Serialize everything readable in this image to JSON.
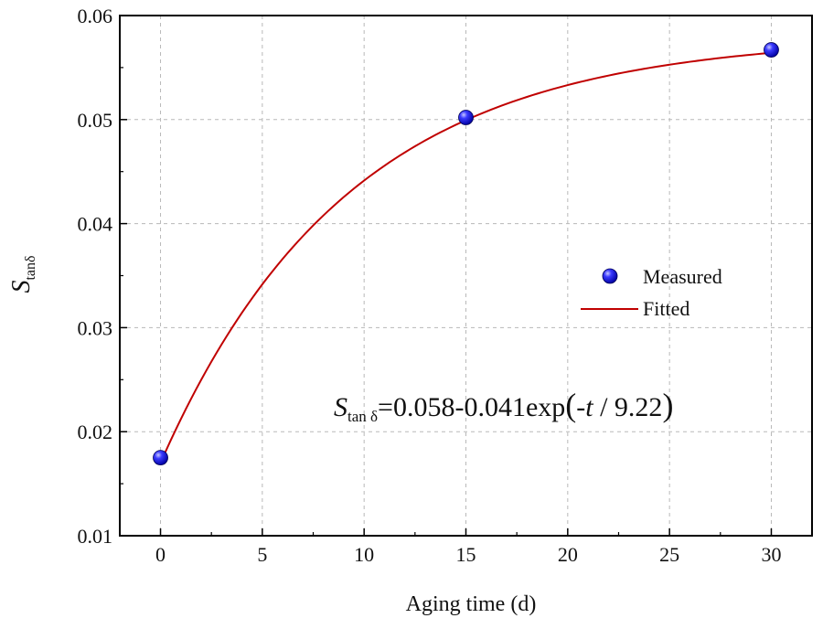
{
  "chart_data": {
    "type": "scatter",
    "title": "",
    "xlabel": "Aging time (d)",
    "ylabel": {
      "main": "S",
      "sub": "tanδ"
    },
    "xlim": [
      -2,
      32
    ],
    "ylim": [
      0.01,
      0.06
    ],
    "xticks": [
      0,
      5,
      10,
      15,
      20,
      25,
      30
    ],
    "xtick_labels": [
      "0",
      "5",
      "10",
      "15",
      "20",
      "25",
      "30"
    ],
    "yticks": [
      0.01,
      0.02,
      0.03,
      0.04,
      0.05,
      0.06
    ],
    "ytick_labels": [
      "0.01",
      "0.02",
      "0.03",
      "0.04",
      "0.05",
      "0.06"
    ],
    "grid": true,
    "legend_position": "right",
    "series": [
      {
        "name": "Measured",
        "kind": "scatter",
        "color": "#1a1aff",
        "x": [
          0,
          15,
          30
        ],
        "y": [
          0.0175,
          0.0502,
          0.0567
        ]
      },
      {
        "name": "Fitted",
        "kind": "line",
        "color": "#c00000",
        "model": {
          "a": 0.058,
          "b": 0.041,
          "tau": 9.22
        },
        "x_range": [
          0,
          30
        ]
      }
    ],
    "annotation": {
      "lhs_main": "S",
      "lhs_sub": "tan δ",
      "rhs_prefix": "=0.058-0.041exp",
      "open_paren": "(",
      "minus_t": "-t",
      "divisor": " / 9.22",
      "close_paren": ")"
    }
  }
}
